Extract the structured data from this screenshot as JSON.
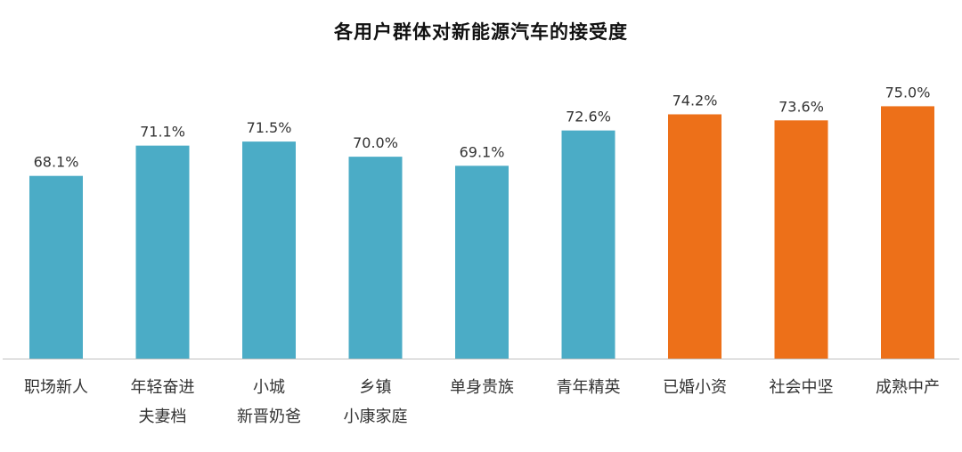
{
  "colors": {
    "normal": "#4BACC6",
    "highlight": "#ED7019",
    "axis": "#BFBFBF",
    "text": "#333333"
  },
  "chart_data": {
    "type": "bar",
    "title": "各用户群体对新能源汽车的接受度",
    "xlabel": "",
    "ylabel": "",
    "ylim": [
      50,
      75.83
    ],
    "grid": false,
    "legend": "none",
    "categories": [
      [
        "职场新人"
      ],
      [
        "年轻奋进",
        "夫妻档"
      ],
      [
        "小城",
        "新晋奶爸"
      ],
      [
        "乡镇",
        "小康家庭"
      ],
      [
        "单身贵族"
      ],
      [
        "青年精英"
      ],
      [
        "已婚小资"
      ],
      [
        "社会中坚"
      ],
      [
        "成熟中产"
      ]
    ],
    "values": [
      68.1,
      71.1,
      71.5,
      70.0,
      69.1,
      72.6,
      74.2,
      73.6,
      75.0
    ],
    "value_labels": [
      "68.1%",
      "71.1%",
      "71.5%",
      "70.0%",
      "69.1%",
      "72.6%",
      "74.2%",
      "73.6%",
      "75.0%"
    ],
    "highlighted": [
      false,
      false,
      false,
      false,
      false,
      false,
      true,
      true,
      true
    ]
  }
}
